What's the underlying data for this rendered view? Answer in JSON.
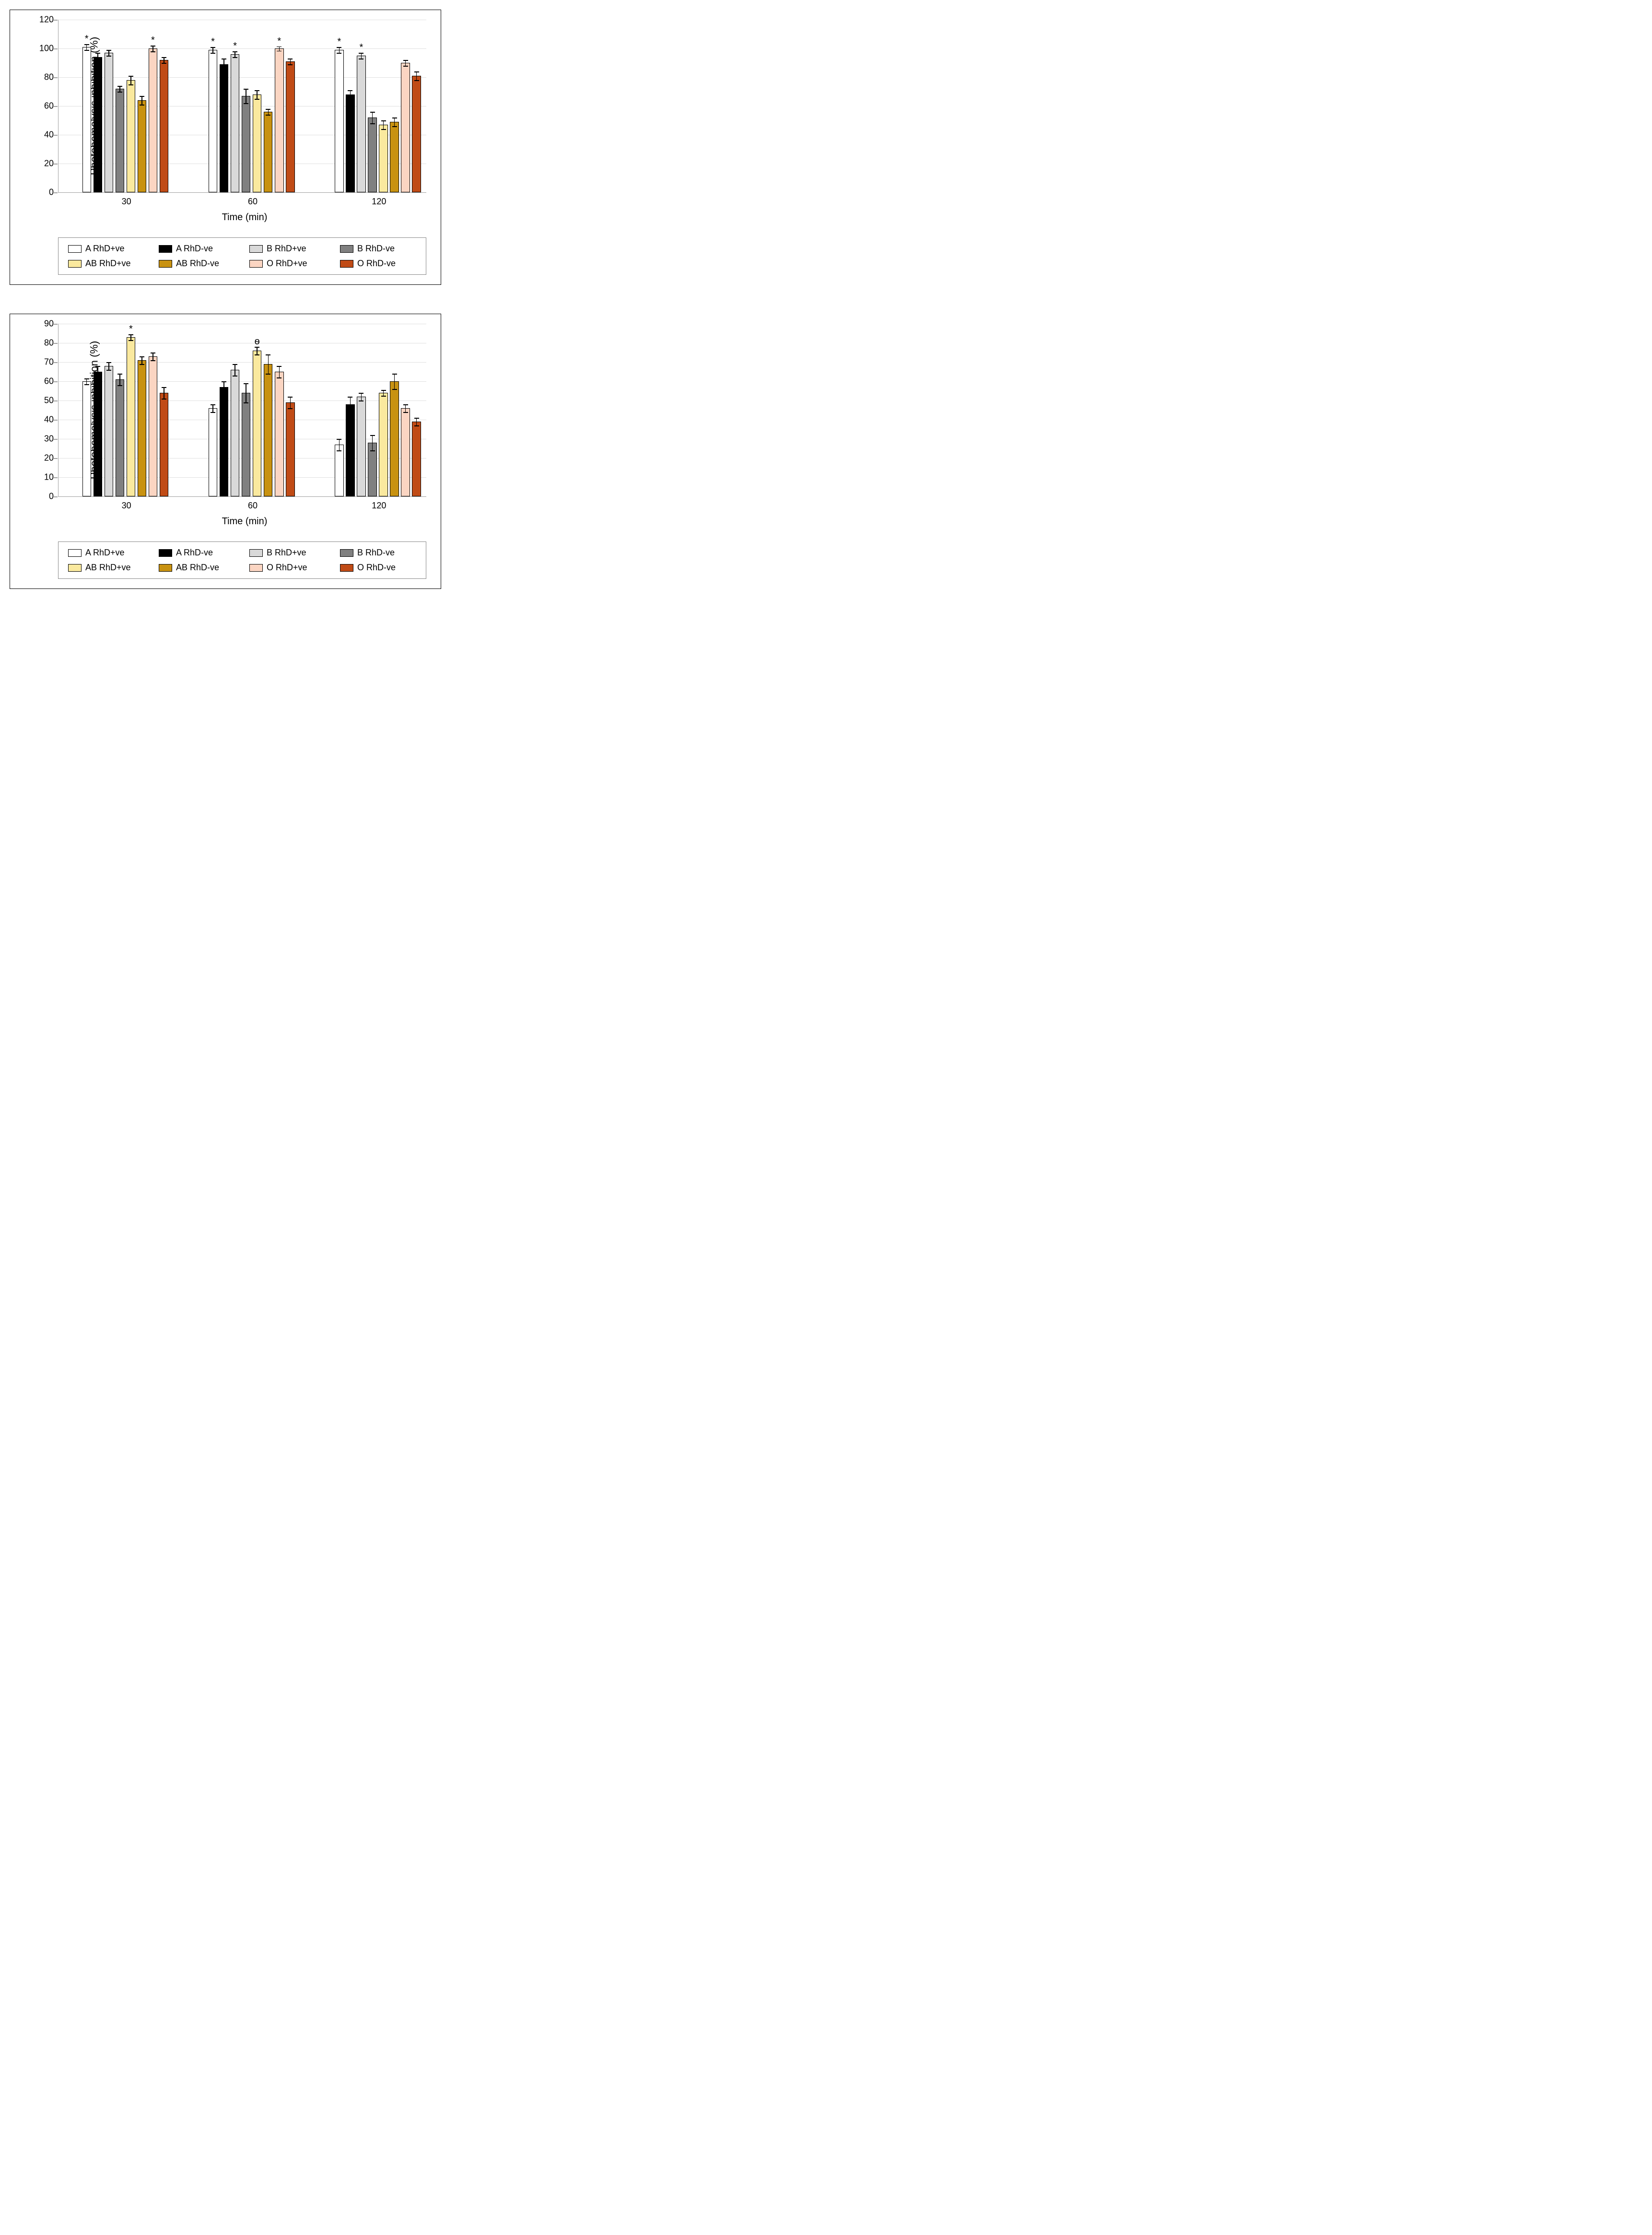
{
  "series": [
    {
      "name": "A RhD+ve",
      "color": "#ffffff"
    },
    {
      "name": "A RhD-ve",
      "color": "#000000"
    },
    {
      "name": "B RhD+ve",
      "color": "#d9d9d9"
    },
    {
      "name": "B RhD-ve",
      "color": "#808080"
    },
    {
      "name": "AB RhD+ve",
      "color": "#fae99e"
    },
    {
      "name": "AB RhD-ve",
      "color": "#c89211"
    },
    {
      "name": "O RhD+ve",
      "color": "#fbd5c2"
    },
    {
      "name": "O RhD-ve",
      "color": "#c04b16"
    }
  ],
  "charts": [
    {
      "type": "bar",
      "ylabel": "Photohemolysis inhibition (%)",
      "xlabel": "Time (min)",
      "categories": [
        "30",
        "60",
        "120"
      ],
      "ylim": [
        0,
        120
      ],
      "ytick_step": 20,
      "grid_color": "#e0e0e0",
      "background_color": "#ffffff",
      "label_fontsize": 20,
      "tick_fontsize": 18,
      "bar_width": 0.8,
      "data": {
        "30": [
          101,
          94,
          97,
          72,
          78,
          64,
          100,
          92
        ],
        "60": [
          99,
          89,
          96,
          67,
          68,
          56,
          100,
          91
        ],
        "120": [
          99,
          68,
          95,
          52,
          47,
          49,
          90,
          81
        ]
      },
      "errors": {
        "30": [
          2,
          3,
          2,
          2,
          3,
          3,
          2,
          2
        ],
        "60": [
          2,
          4,
          2,
          5,
          3,
          2,
          1.5,
          2
        ],
        "120": [
          2,
          3,
          2,
          4,
          3,
          3,
          2,
          3
        ]
      },
      "significance": {
        "30": [
          "*",
          "",
          "",
          "",
          "",
          "",
          "*",
          ""
        ],
        "60": [
          "*",
          "",
          "*",
          "",
          "",
          "",
          "*",
          ""
        ],
        "120": [
          "*",
          "",
          "*",
          "",
          "",
          "",
          "",
          ""
        ]
      }
    },
    {
      "type": "bar",
      "ylabel": "Photohemolysis inhibition (%)",
      "xlabel": "Time (min)",
      "categories": [
        "30",
        "60",
        "120"
      ],
      "ylim": [
        0,
        90
      ],
      "ytick_step": 10,
      "grid_color": "#e0e0e0",
      "background_color": "#ffffff",
      "label_fontsize": 20,
      "tick_fontsize": 18,
      "bar_width": 0.8,
      "data": {
        "30": [
          60,
          65,
          68,
          61,
          83,
          71,
          73,
          54
        ],
        "60": [
          46,
          57,
          66,
          54,
          76,
          69,
          65,
          49
        ],
        "120": [
          27,
          48,
          52,
          28,
          54,
          60,
          46,
          39
        ]
      },
      "errors": {
        "30": [
          1.5,
          3,
          2,
          3,
          1.5,
          2,
          2,
          3
        ],
        "60": [
          2,
          3,
          3,
          5,
          2,
          5,
          3,
          3
        ],
        "120": [
          3,
          4,
          2,
          4,
          1.5,
          4,
          2,
          2
        ]
      },
      "significance": {
        "30": [
          "",
          "",
          "",
          "",
          "*",
          "",
          "",
          ""
        ],
        "60": [
          "",
          "",
          "",
          "",
          "ѳ",
          "",
          "",
          ""
        ],
        "120": [
          "",
          "",
          "",
          "",
          "",
          "",
          "",
          ""
        ]
      }
    }
  ]
}
